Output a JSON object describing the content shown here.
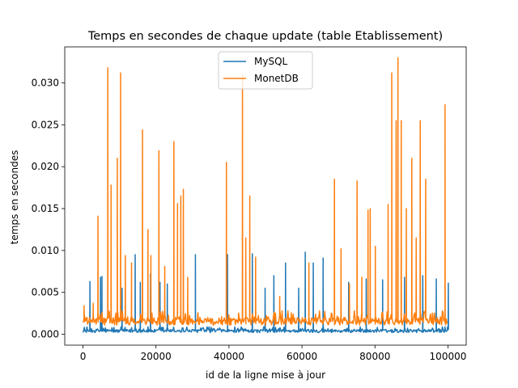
{
  "chart_data": {
    "type": "line",
    "title": "Temps en secondes de chaque update (table Etablissement)",
    "xlabel": "id de la ligne mise à jour",
    "ylabel": "temps en secondes",
    "xlim": [
      -5000,
      105000
    ],
    "ylim": [
      -0.0013,
      0.0343
    ],
    "x_ticks": [
      0,
      20000,
      40000,
      60000,
      80000,
      100000
    ],
    "x_tick_labels": [
      "0",
      "20000",
      "40000",
      "60000",
      "80000",
      "100000"
    ],
    "y_ticks": [
      0.0,
      0.005,
      0.01,
      0.015,
      0.02,
      0.025,
      0.03
    ],
    "y_tick_labels": [
      "0.000",
      "0.005",
      "0.010",
      "0.015",
      "0.020",
      "0.025",
      "0.030"
    ],
    "grid": false,
    "legend_position": "upper center",
    "series": [
      {
        "name": "MySQL",
        "color": "#1f77b4",
        "baseline_low": 0.0002,
        "baseline_high": 0.0009,
        "spikes": [
          {
            "x": 1900,
            "y": 0.0063
          },
          {
            "x": 4800,
            "y": 0.0068
          },
          {
            "x": 5200,
            "y": 0.0069
          },
          {
            "x": 10700,
            "y": 0.0055
          },
          {
            "x": 14300,
            "y": 0.0095
          },
          {
            "x": 15700,
            "y": 0.0062
          },
          {
            "x": 18500,
            "y": 0.0072
          },
          {
            "x": 21100,
            "y": 0.0062
          },
          {
            "x": 23100,
            "y": 0.006
          },
          {
            "x": 30800,
            "y": 0.0095
          },
          {
            "x": 39600,
            "y": 0.0095
          },
          {
            "x": 46400,
            "y": 0.0096
          },
          {
            "x": 49900,
            "y": 0.0055
          },
          {
            "x": 52300,
            "y": 0.007
          },
          {
            "x": 55500,
            "y": 0.0085
          },
          {
            "x": 59100,
            "y": 0.0055
          },
          {
            "x": 60900,
            "y": 0.0098
          },
          {
            "x": 63100,
            "y": 0.0085
          },
          {
            "x": 65800,
            "y": 0.0091
          },
          {
            "x": 72800,
            "y": 0.0062
          },
          {
            "x": 77600,
            "y": 0.0066
          },
          {
            "x": 82100,
            "y": 0.0065
          },
          {
            "x": 88100,
            "y": 0.0068
          },
          {
            "x": 93100,
            "y": 0.007
          },
          {
            "x": 96800,
            "y": 0.0066
          },
          {
            "x": 100100,
            "y": 0.0061
          }
        ]
      },
      {
        "name": "MonetDB",
        "color": "#ff7f0e",
        "baseline_low": 0.0011,
        "baseline_high": 0.0028,
        "spikes": [
          {
            "x": 300,
            "y": 0.0034
          },
          {
            "x": 2800,
            "y": 0.0037
          },
          {
            "x": 4100,
            "y": 0.0141
          },
          {
            "x": 6800,
            "y": 0.0318
          },
          {
            "x": 7700,
            "y": 0.0178
          },
          {
            "x": 9400,
            "y": 0.021
          },
          {
            "x": 10300,
            "y": 0.0312
          },
          {
            "x": 11600,
            "y": 0.0094
          },
          {
            "x": 13300,
            "y": 0.0085
          },
          {
            "x": 16300,
            "y": 0.0244
          },
          {
            "x": 17800,
            "y": 0.0125
          },
          {
            "x": 18600,
            "y": 0.0094
          },
          {
            "x": 20800,
            "y": 0.0219
          },
          {
            "x": 22400,
            "y": 0.0081
          },
          {
            "x": 24900,
            "y": 0.023
          },
          {
            "x": 25900,
            "y": 0.0156
          },
          {
            "x": 26800,
            "y": 0.0165
          },
          {
            "x": 27500,
            "y": 0.0173
          },
          {
            "x": 28700,
            "y": 0.0068
          },
          {
            "x": 39300,
            "y": 0.0205
          },
          {
            "x": 43700,
            "y": 0.031
          },
          {
            "x": 44600,
            "y": 0.0115
          },
          {
            "x": 45700,
            "y": 0.0165
          },
          {
            "x": 47300,
            "y": 0.0092
          },
          {
            "x": 53900,
            "y": 0.0045
          },
          {
            "x": 61900,
            "y": 0.0085
          },
          {
            "x": 68900,
            "y": 0.0185
          },
          {
            "x": 70700,
            "y": 0.0102
          },
          {
            "x": 73000,
            "y": 0.006
          },
          {
            "x": 75100,
            "y": 0.0183
          },
          {
            "x": 76400,
            "y": 0.0068
          },
          {
            "x": 78100,
            "y": 0.0148
          },
          {
            "x": 78700,
            "y": 0.015
          },
          {
            "x": 80100,
            "y": 0.0105
          },
          {
            "x": 83600,
            "y": 0.0155
          },
          {
            "x": 84600,
            "y": 0.0312
          },
          {
            "x": 85800,
            "y": 0.0255
          },
          {
            "x": 86300,
            "y": 0.033
          },
          {
            "x": 87200,
            "y": 0.0255
          },
          {
            "x": 88600,
            "y": 0.015
          },
          {
            "x": 90100,
            "y": 0.021
          },
          {
            "x": 91300,
            "y": 0.0115
          },
          {
            "x": 92400,
            "y": 0.0255
          },
          {
            "x": 93900,
            "y": 0.0185
          },
          {
            "x": 99200,
            "y": 0.0274
          }
        ]
      }
    ]
  }
}
